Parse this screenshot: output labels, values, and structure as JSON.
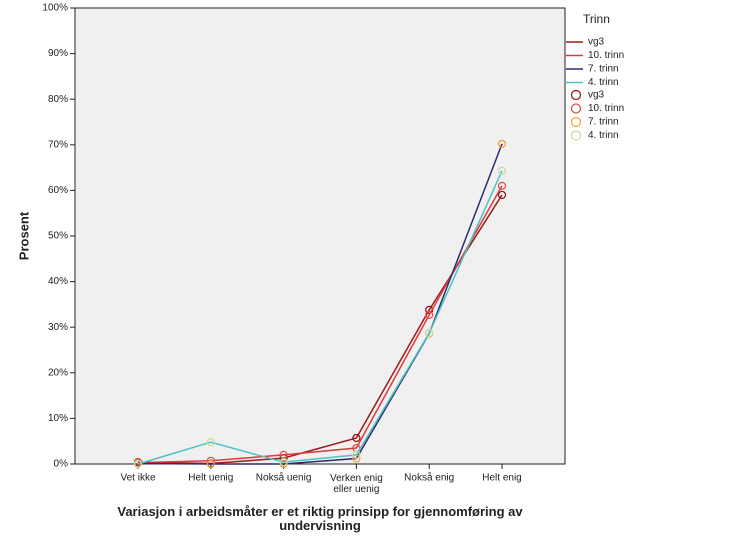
{
  "chart_data": {
    "type": "line",
    "x_label": "Variasjon i arbeidsmåter er et riktig prinsipp for gjennomføring av undervisning",
    "y_label": "Prosent",
    "legend_title": "Trinn",
    "categories": [
      "Vet ikke",
      "Helt uenig",
      "Nokså uenig",
      "Verken enig eller uenig",
      "Nokså enig",
      "Helt enig"
    ],
    "series": [
      {
        "name": "vg3",
        "color": "#9b1c1c",
        "marker_color": "#8b1010",
        "values": [
          0.4,
          0.1,
          1.3,
          5.7,
          33.8,
          59.0
        ]
      },
      {
        "name": "10. trinn",
        "color": "#e03a3a",
        "marker_color": "#e84848",
        "values": [
          0.3,
          0.7,
          2.0,
          3.5,
          32.7,
          61.0
        ]
      },
      {
        "name": "7. trinn",
        "color": "#2d2d6e",
        "marker_color": "#f0a030",
        "values": [
          0.1,
          0,
          0,
          1.2,
          28.6,
          70.2
        ]
      },
      {
        "name": "4. trinn",
        "color": "#4cc4c4",
        "marker_color": "#c8d8a0",
        "values": [
          0,
          4.8,
          0.4,
          2.0,
          28.7,
          64.3
        ]
      }
    ],
    "ylim": [
      0,
      100
    ],
    "yticks": [
      {
        "value": 0,
        "label": "0%"
      },
      {
        "value": 10,
        "label": "10%"
      },
      {
        "value": 20,
        "label": "20%"
      },
      {
        "value": 30,
        "label": "30%"
      },
      {
        "value": 40,
        "label": "40%"
      },
      {
        "value": 50,
        "label": "50%"
      },
      {
        "value": 60,
        "label": "60%"
      },
      {
        "value": 70,
        "label": "70%"
      },
      {
        "value": 80,
        "label": "80%"
      },
      {
        "value": 90,
        "label": "90%"
      },
      {
        "value": 100,
        "label": "100%"
      }
    ],
    "plot_background": "#f0f0f0"
  }
}
